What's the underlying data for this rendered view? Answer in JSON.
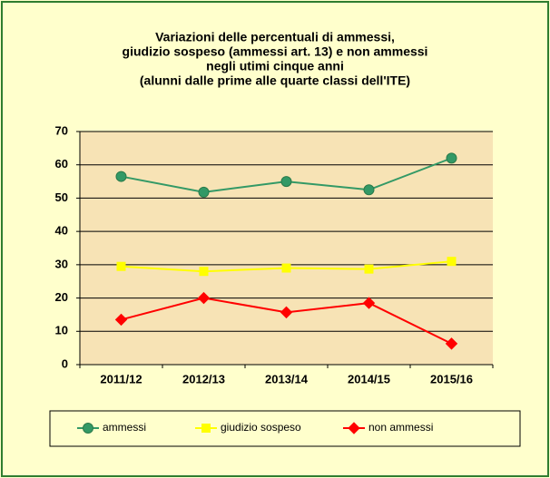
{
  "chart_data": {
    "type": "line",
    "title": [
      "Variazioni delle percentuali di ammessi,",
      "giudizio sospeso (ammessi art. 13) e non ammessi",
      "negli utimi cinque anni",
      "(alunni dalle prime alle quarte classi dell'ITE)"
    ],
    "categories": [
      "2011/12",
      "2012/13",
      "2013/14",
      "2014/15",
      "2015/16"
    ],
    "series": [
      {
        "name": "ammessi",
        "color": "#339966",
        "marker": "circle",
        "values": [
          56.5,
          51.8,
          55,
          52.5,
          62
        ]
      },
      {
        "name": "giudizio  sospeso",
        "color": "#ffff00",
        "marker": "square",
        "values": [
          29.5,
          28,
          29,
          28.7,
          31
        ]
      },
      {
        "name": "non ammessi",
        "color": "#ff0000",
        "marker": "diamond",
        "values": [
          13.5,
          20,
          15.7,
          18.5,
          6.3
        ]
      }
    ],
    "ylim": [
      0,
      70
    ],
    "yticks": [
      0,
      10,
      20,
      30,
      40,
      50,
      60,
      70
    ],
    "grid": true,
    "legend": "bottom"
  }
}
